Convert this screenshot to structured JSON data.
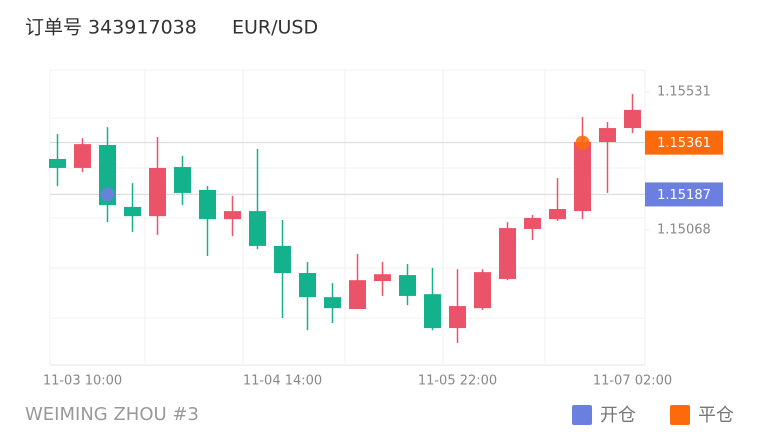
{
  "header": {
    "order": "订单号 343917038",
    "symbol": "EUR/USD"
  },
  "footer": "WEIMING ZHOU #3",
  "chart_data": {
    "type": "candlestick",
    "up_color": "#eb5468",
    "down_color": "#14b18d",
    "categories": [
      null,
      "11-03 10:00",
      null,
      null,
      null,
      null,
      null,
      null,
      null,
      "11-04 14:00",
      null,
      null,
      null,
      null,
      null,
      null,
      "11-05 22:00",
      null,
      null,
      null,
      null,
      null,
      null,
      "11-07 02:00"
    ],
    "open": [
      1.15306,
      1.15276,
      1.15353,
      1.15145,
      1.15114,
      1.15279,
      1.15202,
      1.15104,
      1.15131,
      1.15014,
      1.14923,
      1.14842,
      1.14802,
      1.14896,
      1.14916,
      1.14852,
      1.14738,
      1.14805,
      1.14903,
      1.15071,
      1.15104,
      1.15131,
      1.15363,
      1.1541
    ],
    "high": [
      1.1539,
      1.15376,
      1.15413,
      1.15225,
      1.1538,
      1.15316,
      1.15215,
      1.15182,
      1.1534,
      1.15101,
      1.1496,
      1.14889,
      1.14987,
      1.1496,
      1.14953,
      1.1494,
      1.14936,
      1.14936,
      1.15094,
      1.15118,
      1.15242,
      1.15447,
      1.1543,
      1.15524
    ],
    "low": [
      1.15215,
      1.15262,
      1.15094,
      1.15061,
      1.15051,
      1.15151,
      1.1498,
      1.15047,
      1.15003,
      1.14772,
      1.14731,
      1.14755,
      1.14802,
      1.14846,
      1.14815,
      1.14731,
      1.14688,
      1.14799,
      1.14899,
      1.15034,
      1.15098,
      1.15104,
      1.15192,
      1.15393
    ],
    "close": [
      1.15276,
      1.15356,
      1.15151,
      1.15114,
      1.15276,
      1.15192,
      1.15104,
      1.15131,
      1.15014,
      1.14923,
      1.14842,
      1.14805,
      1.14899,
      1.14919,
      1.14846,
      1.14738,
      1.14812,
      1.14926,
      1.15074,
      1.15108,
      1.15138,
      1.15363,
      1.1541,
      1.15471
    ],
    "markers": [
      {
        "name": "开仓",
        "color": "#6b7fe0",
        "values": [
          null,
          null,
          1.15187,
          null,
          null,
          null,
          null,
          null,
          null,
          null,
          null,
          null,
          null,
          null,
          null,
          null,
          null,
          null,
          null,
          null,
          null,
          null,
          null,
          null
        ]
      },
      {
        "name": "平仓",
        "color": "#fd6a0c",
        "values": [
          null,
          null,
          null,
          null,
          null,
          null,
          null,
          null,
          null,
          null,
          null,
          null,
          null,
          null,
          null,
          null,
          null,
          null,
          null,
          null,
          null,
          1.15361,
          null,
          null
        ]
      }
    ],
    "ylim": [
      1.14614,
      1.15605
    ],
    "yticks": [
      1.15531,
      1.15068
    ],
    "legend": "bottom-right"
  }
}
